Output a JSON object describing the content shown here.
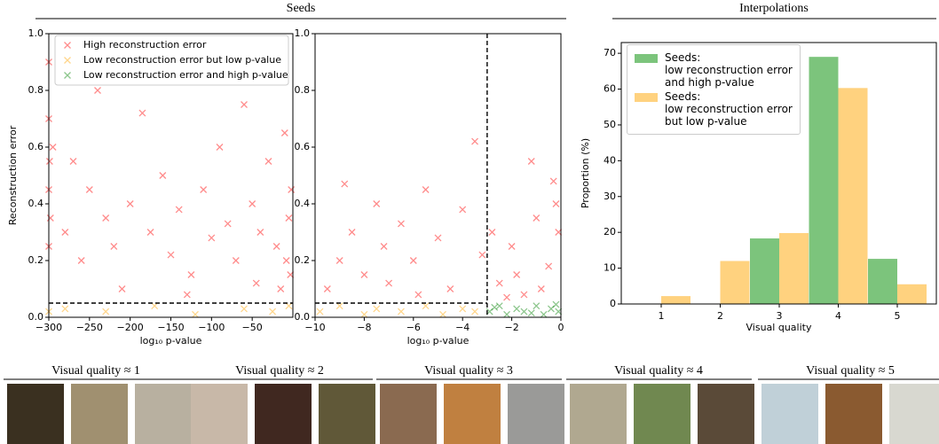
{
  "sections": [
    "Seeds",
    "Interpolations"
  ],
  "chart_data": [
    {
      "type": "scatter",
      "xlabel": "log₁₀ p-value",
      "ylabel": "Reconstruction error",
      "xlim": [
        -300,
        0
      ],
      "ylim": [
        0,
        1
      ],
      "xticks": [
        {
          "value": -300,
          "label": "−300"
        },
        {
          "value": -250,
          "label": "−250"
        },
        {
          "value": -200,
          "label": "−200"
        },
        {
          "value": -150,
          "label": "−150"
        },
        {
          "value": -100,
          "label": "−100"
        },
        {
          "value": -50,
          "label": "−50"
        }
      ],
      "yticks": [
        {
          "value": 0,
          "label": "0.0"
        },
        0.2,
        0.4,
        0.6,
        0.8,
        {
          "value": 1,
          "label": "1.0"
        }
      ],
      "threshold_y": 0.05,
      "legend": "upper right",
      "series": [
        {
          "name": "High reconstruction error",
          "color": "#ff0000",
          "x": [
            -300,
            -300,
            -299,
            -300,
            -298,
            -300,
            -295,
            -280,
            -270,
            -260,
            -250,
            -240,
            -230,
            -220,
            -200,
            -185,
            -175,
            -160,
            -150,
            -140,
            -125,
            -110,
            -100,
            -90,
            -80,
            -70,
            -60,
            -50,
            -40,
            -30,
            -20,
            -10,
            -5,
            -3,
            -15,
            -45,
            -130,
            -210,
            -2,
            -8
          ],
          "y": [
            0.9,
            0.7,
            0.55,
            0.45,
            0.35,
            0.25,
            0.6,
            0.3,
            0.55,
            0.2,
            0.45,
            0.8,
            0.35,
            0.25,
            0.4,
            0.72,
            0.3,
            0.5,
            0.22,
            0.38,
            0.15,
            0.45,
            0.28,
            0.6,
            0.33,
            0.2,
            0.75,
            0.4,
            0.3,
            0.55,
            0.25,
            0.65,
            0.35,
            0.15,
            0.1,
            0.12,
            0.08,
            0.1,
            0.45,
            0.2
          ]
        },
        {
          "name": "Low reconstruction error but low p-value",
          "color": "#ffa500",
          "x": [
            -280,
            -230,
            -170,
            -120,
            -60,
            -25,
            -5,
            -300
          ],
          "y": [
            0.03,
            0.02,
            0.04,
            0.01,
            0.03,
            0.02,
            0.04,
            0.02
          ]
        },
        {
          "name": "Low reconstruction error and high p-value",
          "color": "#008000",
          "x": [],
          "y": []
        }
      ]
    },
    {
      "type": "scatter",
      "xlabel": "log₁₀ p-value",
      "xlim": [
        -10,
        0
      ],
      "ylim": [
        0,
        1
      ],
      "xticks": [
        {
          "value": -10,
          "label": "−10"
        },
        {
          "value": -8,
          "label": "−8"
        },
        {
          "value": -6,
          "label": "−6"
        },
        {
          "value": -4,
          "label": "−4"
        },
        {
          "value": -2,
          "label": "−2"
        },
        0
      ],
      "yticks": [
        {
          "value": 0,
          "label": "0.0"
        },
        0.2,
        0.4,
        0.6,
        0.8,
        {
          "value": 1,
          "label": "1.0"
        }
      ],
      "threshold_y": 0.05,
      "threshold_x": -3,
      "series": [
        {
          "color": "#ff0000",
          "x": [
            -9.5,
            -9,
            -8.8,
            -8.5,
            -8,
            -7.5,
            -7.2,
            -7,
            -6.5,
            -6,
            -5.5,
            -5,
            -4.5,
            -4,
            -3.5,
            -3.2,
            -2.8,
            -2.5,
            -2,
            -1.5,
            -1.2,
            -1,
            -0.5,
            -0.3,
            -0.2,
            -2.2,
            -0.8,
            -5.8,
            -1.8,
            -0.1
          ],
          "y": [
            0.1,
            0.2,
            0.47,
            0.3,
            0.15,
            0.4,
            0.25,
            0.12,
            0.33,
            0.2,
            0.45,
            0.28,
            0.1,
            0.38,
            0.62,
            0.22,
            0.3,
            0.12,
            0.25,
            0.08,
            0.55,
            0.35,
            0.18,
            0.48,
            0.4,
            0.07,
            0.1,
            0.08,
            0.15,
            0.3
          ]
        },
        {
          "color": "#ffa500",
          "x": [
            -9.8,
            -9,
            -8,
            -7.5,
            -6.5,
            -5.5,
            -4.8,
            -4,
            -3.5
          ],
          "y": [
            0.02,
            0.04,
            0.01,
            0.03,
            0.02,
            0.04,
            0.01,
            0.03,
            0.02
          ]
        },
        {
          "color": "#008000",
          "x": [
            -2.9,
            -2.5,
            -2.2,
            -1.8,
            -1.5,
            -1,
            -0.7,
            -0.4,
            -0.1,
            -2.7,
            -1.2,
            -0.2
          ],
          "y": [
            0.02,
            0.04,
            0.01,
            0.03,
            0.02,
            0.04,
            0.01,
            0.03,
            0.02,
            0.035,
            0.015,
            0.045
          ]
        }
      ]
    },
    {
      "type": "bar",
      "xlabel": "Visual quality",
      "ylabel": "Proportion (%)",
      "categories": [
        "1",
        "2",
        "3",
        "4",
        "5"
      ],
      "ylim": [
        0,
        73
      ],
      "yticks": [
        0,
        10,
        20,
        30,
        40,
        50,
        60,
        70
      ],
      "legend": "upper left",
      "series": [
        {
          "name": "Seeds:\nlow reconstruction error\nand high p-value",
          "color": "#7cc47c",
          "values": [
            0,
            0,
            18.3,
            69,
            12.6
          ]
        },
        {
          "name": "Seeds:\nlow reconstruction error\nbut low p-value",
          "color": "#ffd27f",
          "values": [
            2.2,
            12,
            19.8,
            60.3,
            5.5
          ]
        }
      ]
    }
  ],
  "gallery": [
    {
      "label": "Visual quality ≈ 1"
    },
    {
      "label": "Visual quality ≈ 2"
    },
    {
      "label": "Visual quality ≈ 3"
    },
    {
      "label": "Visual quality ≈ 4"
    },
    {
      "label": "Visual quality ≈ 5"
    }
  ]
}
